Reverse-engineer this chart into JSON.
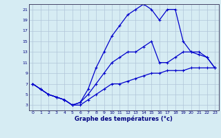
{
  "xlabel": "Graphe des températures (°c)",
  "xlim": [
    -0.5,
    23.5
  ],
  "ylim": [
    2,
    22
  ],
  "xticks": [
    0,
    1,
    2,
    3,
    4,
    5,
    6,
    7,
    8,
    9,
    10,
    11,
    12,
    13,
    14,
    15,
    16,
    17,
    18,
    19,
    20,
    21,
    22,
    23
  ],
  "yticks": [
    3,
    5,
    7,
    9,
    11,
    13,
    15,
    17,
    19,
    21
  ],
  "background_color": "#d6ecf3",
  "grid_color": "#b0c4d8",
  "line_color": "#0000cc",
  "line1_x": [
    0,
    1,
    2,
    3,
    4,
    5,
    6,
    7,
    8,
    9,
    10,
    11,
    12,
    13,
    14,
    15,
    16,
    17,
    18,
    19,
    20,
    21,
    22,
    23
  ],
  "line1_y": [
    7,
    6,
    5,
    4.5,
    4,
    3,
    3,
    4,
    5,
    6,
    7,
    7,
    7.5,
    8,
    8.5,
    9,
    9,
    9.5,
    9.5,
    9.5,
    10,
    10,
    10,
    10
  ],
  "line2_x": [
    0,
    1,
    2,
    3,
    4,
    5,
    6,
    7,
    8,
    9,
    10,
    11,
    12,
    13,
    14,
    15,
    16,
    17,
    18,
    19,
    20,
    21,
    22,
    23
  ],
  "line2_y": [
    7,
    6,
    5,
    4.5,
    4,
    3,
    3.5,
    6,
    10,
    13,
    16,
    18,
    20,
    21,
    22,
    21,
    19,
    21,
    21,
    15,
    13,
    13,
    12,
    10
  ],
  "line3_x": [
    0,
    1,
    2,
    3,
    4,
    5,
    6,
    7,
    8,
    9,
    10,
    11,
    12,
    13,
    14,
    15,
    16,
    17,
    18,
    19,
    20,
    21,
    22,
    23
  ],
  "line3_y": [
    7,
    6,
    5,
    4.5,
    4,
    3,
    3.5,
    5,
    7,
    9,
    11,
    12,
    13,
    13,
    14,
    15,
    11,
    11,
    12,
    13,
    13,
    12.5,
    12,
    10
  ]
}
